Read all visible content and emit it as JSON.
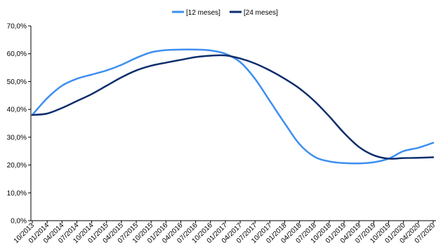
{
  "chart_data": {
    "type": "line",
    "title": "",
    "xlabel": "",
    "ylabel": "",
    "ylim": [
      0,
      70
    ],
    "yticks": [
      "0,0%",
      "10,0%",
      "20,0%",
      "30,0%",
      "40,0%",
      "50,0%",
      "60,0%",
      "70,0%"
    ],
    "grid": false,
    "legend_position": "top-center",
    "x_categories": [
      "10/2013",
      "01/2014",
      "04/2014",
      "07/2014",
      "10/2014",
      "01/2015",
      "04/2015",
      "07/2015",
      "10/2015",
      "01/2016",
      "04/2016",
      "07/2016",
      "10/2016",
      "01/2017",
      "04/2017",
      "07/2017",
      "10/2017",
      "01/2018",
      "04/2018",
      "07/2018",
      "10/2018",
      "01/2019",
      "04/2019",
      "07/2019",
      "10/2019",
      "01/2020",
      "04/2020",
      "07/2020"
    ],
    "series": [
      {
        "name": "[12 meses]",
        "color": "#3d8ff0",
        "values": [
          38.0,
          44.0,
          48.5,
          51.0,
          52.5,
          54.0,
          56.0,
          58.5,
          60.5,
          61.3,
          61.5,
          61.5,
          61.2,
          60.0,
          57.0,
          51.0,
          43.0,
          35.0,
          27.5,
          23.0,
          21.3,
          20.7,
          20.6,
          21.0,
          22.3,
          25.0,
          26.2,
          28.0
        ]
      },
      {
        "name": "[24 meses]",
        "color": "#0d2d6c",
        "values": [
          38.0,
          38.5,
          40.5,
          43.0,
          45.5,
          48.5,
          51.5,
          54.0,
          55.7,
          56.8,
          57.8,
          58.8,
          59.3,
          59.4,
          58.3,
          56.5,
          54.0,
          51.0,
          47.5,
          43.0,
          37.5,
          31.5,
          26.5,
          23.5,
          22.3,
          22.5,
          22.6,
          22.8
        ]
      }
    ]
  }
}
